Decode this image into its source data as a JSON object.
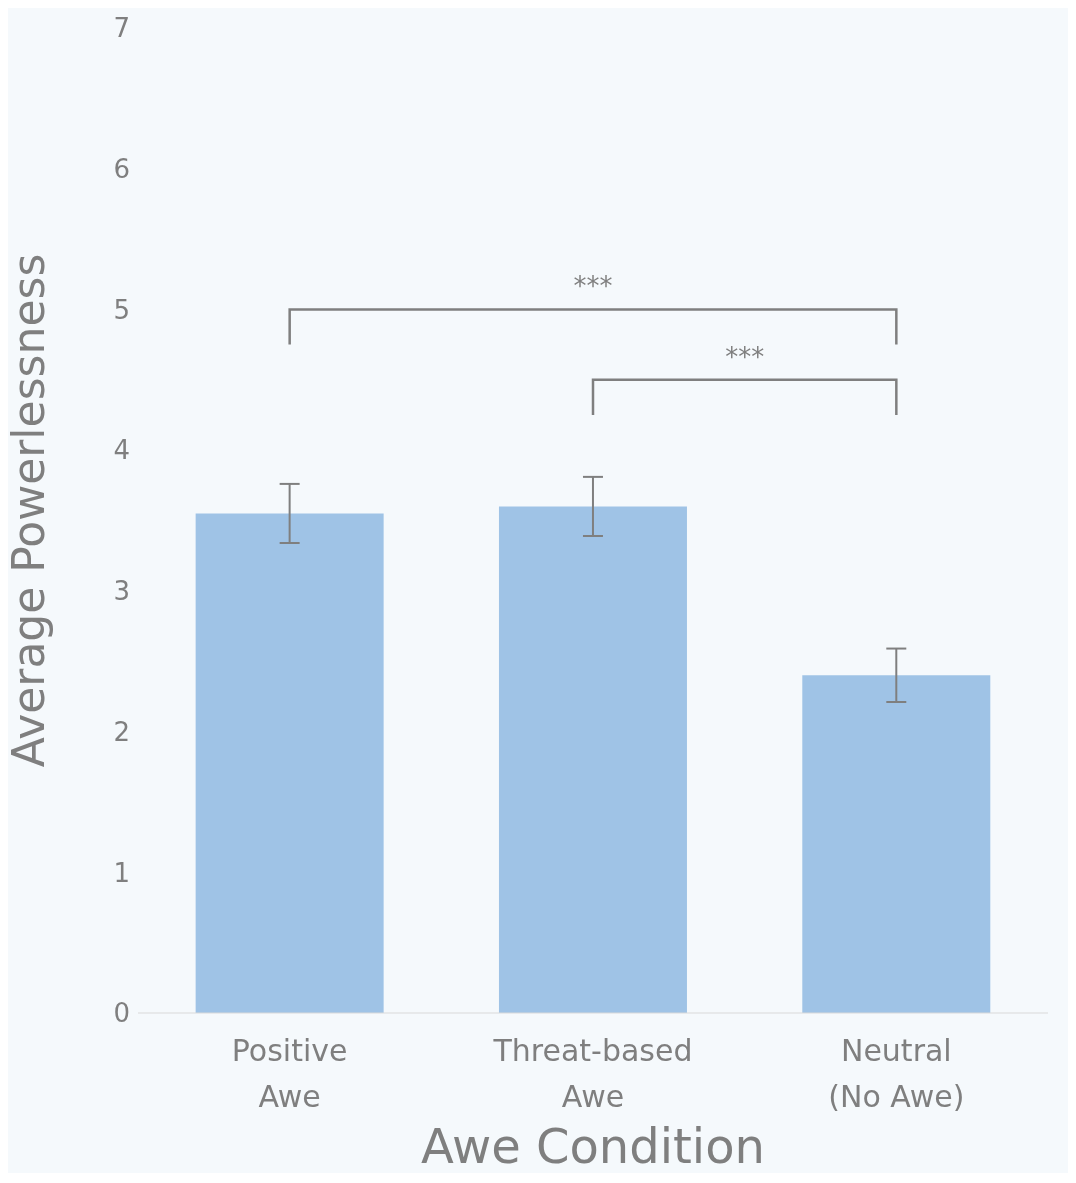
{
  "chart_data": {
    "type": "bar",
    "xlabel": "Awe Condition",
    "ylabel": "Average Powerlessness",
    "categories": [
      "Positive Awe",
      "Threat-based Awe",
      "Neutral (No Awe)"
    ],
    "values": [
      3.55,
      3.6,
      2.4
    ],
    "errors": [
      0.21,
      0.21,
      0.19
    ],
    "color": "#9fc3e6",
    "ylim": [
      0,
      7
    ],
    "yticks": [
      0,
      1,
      2,
      3,
      4,
      5,
      6,
      7
    ],
    "annotations": [
      "***",
      "***"
    ]
  }
}
